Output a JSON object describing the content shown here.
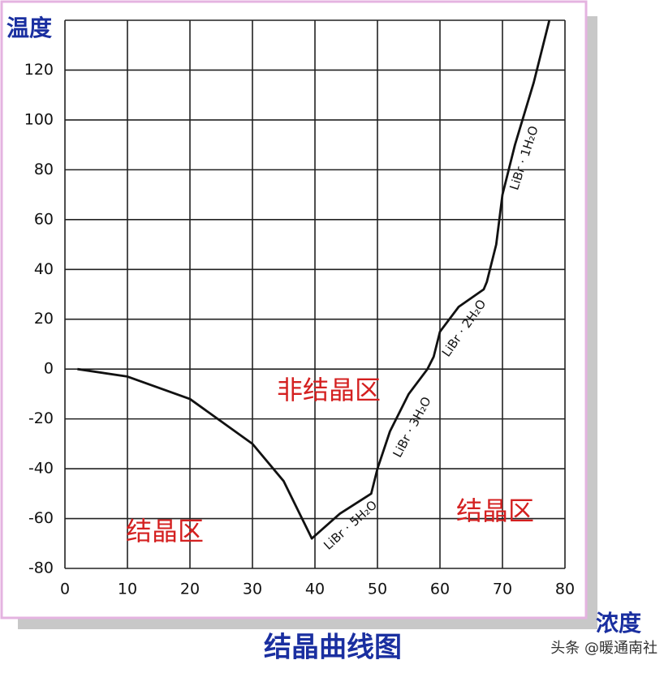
{
  "chart_data": {
    "type": "line",
    "title": "结晶曲线图",
    "y_label": "温度",
    "x_label": "浓度",
    "watermark": "头条 @暖通南社",
    "annotations": [
      "非结晶区",
      "结晶区",
      "结晶区",
      "LiBr · 5H₂O",
      "LiBr · 3H₂O",
      "LiBr · 2H₂O",
      "LiBr · 1H₂O"
    ],
    "xlim": [
      0,
      80
    ],
    "xticks": [
      0,
      10,
      20,
      30,
      40,
      50,
      60,
      70,
      80
    ],
    "ylim": [
      -80,
      140
    ],
    "yticks": [
      -80,
      -60,
      -40,
      -20,
      0,
      20,
      40,
      60,
      80,
      100,
      120
    ],
    "grid": true,
    "series": [
      {
        "color": "#111111",
        "x": [
          2,
          10,
          20,
          30,
          35,
          39.5,
          44,
          49,
          50,
          52,
          55,
          58,
          59,
          60,
          63,
          67,
          67.5,
          69,
          70,
          72,
          75,
          77.5
        ],
        "values": [
          0,
          -3,
          -12,
          -30,
          -45,
          -68,
          -58,
          -50,
          -40,
          -25,
          -10,
          0,
          5,
          15,
          25,
          32,
          35,
          50,
          70,
          90,
          115,
          140
        ]
      }
    ]
  }
}
